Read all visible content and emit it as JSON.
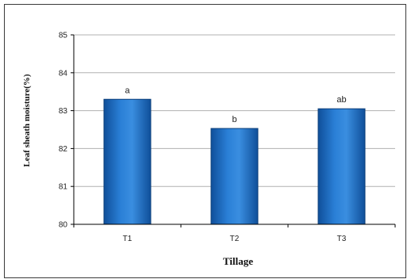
{
  "chart_data": {
    "type": "bar",
    "categories": [
      "T1",
      "T2",
      "T3"
    ],
    "values": [
      83.3,
      82.53,
      83.05
    ],
    "data_labels": [
      "a",
      "b",
      "ab"
    ],
    "xlabel": "Tillage",
    "ylabel": "Leaf sheath moisture(%)",
    "ylim": [
      80,
      85
    ],
    "yticks": [
      80,
      81,
      82,
      83,
      84,
      85
    ],
    "grid": true,
    "legend": "none",
    "colors": {
      "bar": "#1f6fc5",
      "bar_edge": "#0d3f7a",
      "grid": "#b0b0b0"
    }
  }
}
